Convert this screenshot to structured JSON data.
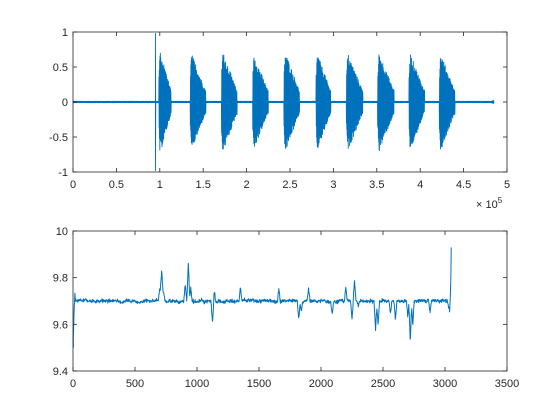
{
  "chart_data": [
    {
      "type": "line",
      "color": "#0072BD",
      "xlim": [
        0,
        500000
      ],
      "ylim": [
        -1,
        1
      ],
      "x_ticks": [
        0,
        0.5,
        1,
        1.5,
        2,
        2.5,
        3,
        3.5,
        4,
        4.5,
        5
      ],
      "x_tick_labels": [
        "0",
        "0.5",
        "1",
        "1.5",
        "2",
        "2.5",
        "3",
        "3.5",
        "4",
        "4.5",
        "5"
      ],
      "x_exponent": {
        "base": "× 10",
        "power": "5"
      },
      "y_ticks": [
        -1,
        -0.5,
        0,
        0.5,
        1
      ],
      "y_tick_labels": [
        "-1",
        "-0.5",
        "0",
        "0.5",
        "1"
      ],
      "grid": false,
      "signal": {
        "x_end": 485000,
        "spike": {
          "x": 95000,
          "y_max": 0.98,
          "y_min": -0.98
        },
        "bursts": [
          {
            "start": 99000,
            "end": 113000,
            "peak": 0.75
          },
          {
            "start": 135000,
            "end": 153000,
            "peak": 0.7
          },
          {
            "start": 171000,
            "end": 189000,
            "peak": 0.73
          },
          {
            "start": 207000,
            "end": 225000,
            "peak": 0.68
          },
          {
            "start": 243000,
            "end": 261000,
            "peak": 0.72
          },
          {
            "start": 280000,
            "end": 297000,
            "peak": 0.7
          },
          {
            "start": 315000,
            "end": 334000,
            "peak": 0.7
          },
          {
            "start": 351000,
            "end": 370000,
            "peak": 0.71
          },
          {
            "start": 387000,
            "end": 405000,
            "peak": 0.7
          },
          {
            "start": 422000,
            "end": 440000,
            "peak": 0.7
          }
        ],
        "baseline_noise": 0.01
      }
    },
    {
      "type": "line",
      "color": "#0072BD",
      "xlim": [
        0,
        3500
      ],
      "ylim": [
        9.4,
        10
      ],
      "x_ticks": [
        0,
        500,
        1000,
        1500,
        2000,
        2500,
        3000,
        3500
      ],
      "x_tick_labels": [
        "0",
        "500",
        "1000",
        "1500",
        "2000",
        "2500",
        "3000",
        "3500"
      ],
      "y_ticks": [
        9.4,
        9.6,
        9.8,
        10
      ],
      "y_tick_labels": [
        "9.4",
        "9.6",
        "9.8",
        "10"
      ],
      "grid": false,
      "signal": {
        "x_start": 0,
        "x_end": 3050,
        "baseline": 9.7,
        "noise": 0.012,
        "events": [
          {
            "x": 3,
            "y": 9.5
          },
          {
            "x": 8,
            "y": 9.76
          },
          {
            "x": 700,
            "y": 9.76
          },
          {
            "x": 715,
            "y": 9.84
          },
          {
            "x": 730,
            "y": 9.74
          },
          {
            "x": 905,
            "y": 9.77
          },
          {
            "x": 930,
            "y": 9.86
          },
          {
            "x": 950,
            "y": 9.75
          },
          {
            "x": 1125,
            "y": 9.61
          },
          {
            "x": 1140,
            "y": 9.75
          },
          {
            "x": 1350,
            "y": 9.76
          },
          {
            "x": 1660,
            "y": 9.76
          },
          {
            "x": 1820,
            "y": 9.62
          },
          {
            "x": 1840,
            "y": 9.66
          },
          {
            "x": 1900,
            "y": 9.75
          },
          {
            "x": 2090,
            "y": 9.65
          },
          {
            "x": 2200,
            "y": 9.76
          },
          {
            "x": 2250,
            "y": 9.63
          },
          {
            "x": 2270,
            "y": 9.79
          },
          {
            "x": 2300,
            "y": 9.68
          },
          {
            "x": 2440,
            "y": 9.58
          },
          {
            "x": 2460,
            "y": 9.6
          },
          {
            "x": 2560,
            "y": 9.64
          },
          {
            "x": 2600,
            "y": 9.62
          },
          {
            "x": 2700,
            "y": 9.63
          },
          {
            "x": 2720,
            "y": 9.52
          },
          {
            "x": 2740,
            "y": 9.6
          },
          {
            "x": 2880,
            "y": 9.65
          },
          {
            "x": 3030,
            "y": 9.67
          },
          {
            "x": 3045,
            "y": 9.61
          },
          {
            "x": 3050,
            "y": 9.93
          }
        ]
      }
    }
  ]
}
